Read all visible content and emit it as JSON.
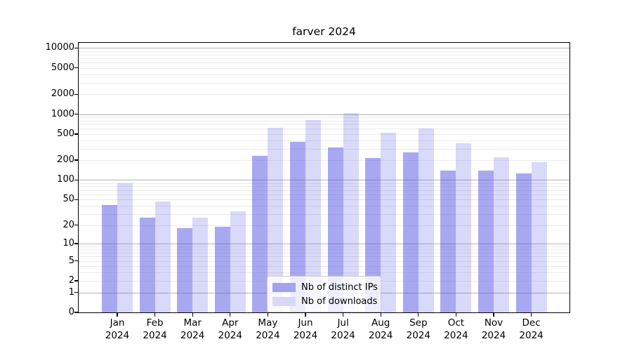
{
  "title": "farver 2024",
  "chart_data": {
    "type": "bar",
    "title": "farver 2024",
    "categories": [
      "Jan",
      "Feb",
      "Mar",
      "Apr",
      "May",
      "Jun",
      "Jul",
      "Aug",
      "Sep",
      "Oct",
      "Nov",
      "Dec"
    ],
    "year_label": "2024",
    "series": [
      {
        "name": "Nb of distinct IPs",
        "color": "#a2a2ed",
        "fill_rgba": "rgba(82,82,228,0.5)",
        "values": [
          41,
          26,
          18,
          19,
          233,
          377,
          312,
          218,
          263,
          140,
          140,
          125
        ]
      },
      {
        "name": "Nb of downloads",
        "color": "#d9d9f6",
        "fill_rgba": "rgba(82,82,228,0.22)",
        "values": [
          90,
          47,
          26,
          33,
          620,
          820,
          1030,
          530,
          600,
          365,
          220,
          187
        ]
      }
    ],
    "yscale": "log1p",
    "ylim": [
      0,
      12000
    ],
    "y_ticks": [
      0,
      1,
      2,
      5,
      10,
      20,
      50,
      100,
      200,
      500,
      1000,
      2000,
      5000,
      10000
    ],
    "y_major_gridlines": [
      1,
      10,
      100,
      1000,
      10000
    ],
    "grid": true,
    "legend_position": "lower-center",
    "axis_color": "#000000",
    "major_grid_color": "#b4b4b4",
    "minor_grid_color": "#ebebeb"
  }
}
